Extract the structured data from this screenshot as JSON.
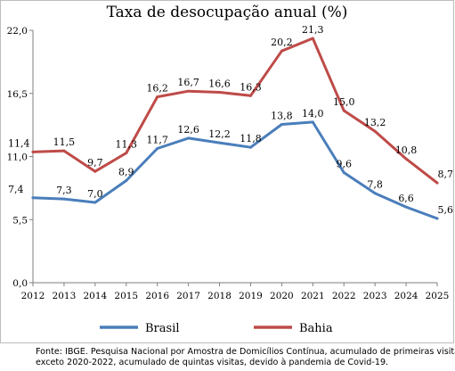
{
  "chart_data": {
    "type": "line",
    "title": "Taxa de desocupação anual (%)",
    "xlabel": "",
    "ylabel": "",
    "categories": [
      "2012",
      "2013",
      "2014",
      "2015",
      "2016",
      "2017",
      "2018",
      "2019",
      "2020",
      "2021",
      "2022",
      "2023",
      "2024",
      "2025"
    ],
    "ylim": [
      0,
      22
    ],
    "yticks": [
      "0,0",
      "5,5",
      "11,0",
      "16,5",
      "22,0"
    ],
    "ytick_values": [
      0,
      5.5,
      11,
      16.5,
      22
    ],
    "grid": false,
    "legend_position": "bottom",
    "series": [
      {
        "name": "Brasil",
        "color": "#4a7ebb",
        "values": [
          7.4,
          7.3,
          7.0,
          8.9,
          11.7,
          12.6,
          12.2,
          11.8,
          13.8,
          14.0,
          9.6,
          7.8,
          6.6,
          5.6
        ],
        "labels": [
          "7,4",
          "7,3",
          "7,0",
          "8,9",
          "11,7",
          "12,6",
          "12,2",
          "11,8",
          "13,8",
          "14,0",
          "9,6",
          "7,8",
          "6,6",
          "5,6"
        ]
      },
      {
        "name": "Bahia",
        "color": "#be4b48",
        "values": [
          11.4,
          11.5,
          9.7,
          11.3,
          16.2,
          16.7,
          16.6,
          16.3,
          20.2,
          21.3,
          15.0,
          13.2,
          10.8,
          8.7
        ],
        "labels": [
          "11,4",
          "11,5",
          "9,7",
          "11,3",
          "16,2",
          "16,7",
          "16,6",
          "16,3",
          "20,2",
          "21,3",
          "15,0",
          "13,2",
          "10,8",
          "8,7"
        ]
      }
    ]
  },
  "footnote": {
    "line1": "Fonte: IBGE. Pesquisa Nacional por Amostra de Domicílios Contínua, acumulado de primeiras visitas,",
    "line2": "exceto 2020-2022, acumulado de quintas visitas, devido à pandemia de Covid-19."
  }
}
